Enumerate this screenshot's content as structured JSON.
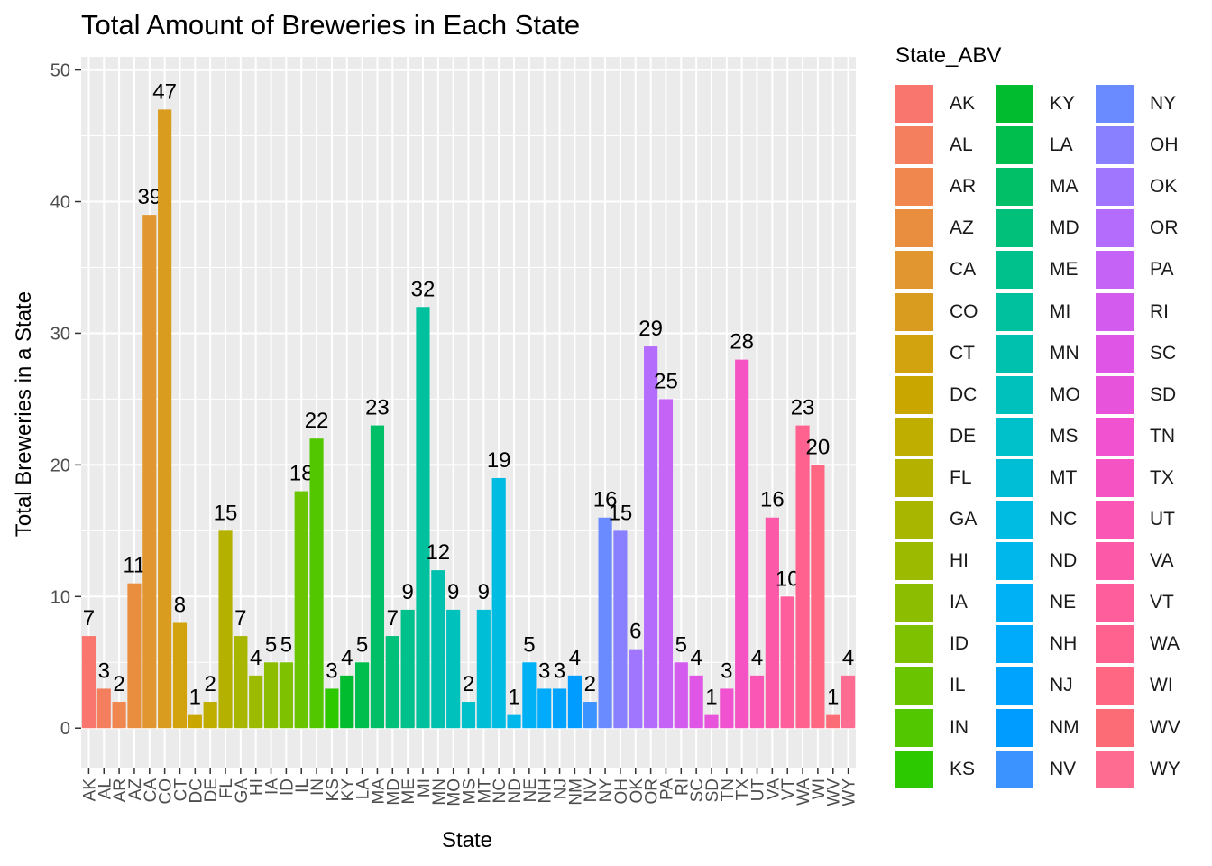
{
  "chart_data": {
    "type": "bar",
    "title": "Total Amount of Breweries in Each State",
    "xlabel": "State",
    "ylabel": "Total Breweries in a State",
    "ylim": [
      -3,
      51
    ],
    "yticks": [
      0,
      10,
      20,
      30,
      40,
      50
    ],
    "grid": true,
    "legend_title": "State_ABV",
    "legend_position": "right",
    "categories": [
      "AK",
      "AL",
      "AR",
      "AZ",
      "CA",
      "CO",
      "CT",
      "DC",
      "DE",
      "FL",
      "GA",
      "HI",
      "IA",
      "ID",
      "IL",
      "IN",
      "KS",
      "KY",
      "LA",
      "MA",
      "MD",
      "ME",
      "MI",
      "MN",
      "MO",
      "MS",
      "MT",
      "NC",
      "ND",
      "NE",
      "NH",
      "NJ",
      "NM",
      "NV",
      "NY",
      "OH",
      "OK",
      "OR",
      "PA",
      "RI",
      "SC",
      "SD",
      "TN",
      "TX",
      "UT",
      "VA",
      "VT",
      "WA",
      "WI",
      "WV",
      "WY"
    ],
    "values": [
      7,
      3,
      2,
      11,
      39,
      47,
      8,
      1,
      2,
      15,
      7,
      4,
      5,
      5,
      18,
      22,
      3,
      4,
      5,
      23,
      7,
      9,
      32,
      12,
      9,
      2,
      9,
      19,
      1,
      5,
      3,
      3,
      4,
      2,
      16,
      15,
      6,
      29,
      25,
      5,
      4,
      1,
      3,
      28,
      4,
      16,
      10,
      23,
      20,
      1,
      4
    ],
    "colors": [
      "#F8766D",
      "#F47F5E",
      "#EF874E",
      "#E98E3F",
      "#E2962F",
      "#DA9C1F",
      "#D2A20F",
      "#C9A700",
      "#BFAD00",
      "#B4B100",
      "#A8B600",
      "#9BBA00",
      "#8DBD00",
      "#7DC100",
      "#6AC400",
      "#52C700",
      "#2DC900",
      "#00BC2E",
      "#00BE4E",
      "#00BF66",
      "#00C07A",
      "#00C18C",
      "#00C19D",
      "#00C1AD",
      "#00C1BC",
      "#00C0CA",
      "#00BED6",
      "#00BBE2",
      "#00B7EC",
      "#00B2F5",
      "#00ABFC",
      "#00A4FF",
      "#009CFF",
      "#3B93FF",
      "#6A8AFF",
      "#8980FF",
      "#A176FF",
      "#B46CFC",
      "#C563F6",
      "#D35BEE",
      "#DF55E5",
      "#E853DB",
      "#F052D0",
      "#F553C4",
      "#F956B6",
      "#FC5AA9",
      "#FE5E9C",
      "#FF628F",
      "#FF6782",
      "#FC6C76",
      "#FF6C91"
    ]
  }
}
